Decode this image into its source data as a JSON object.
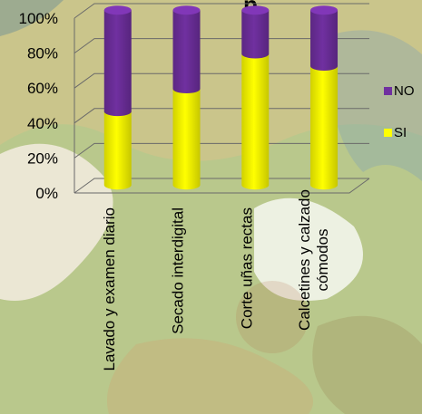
{
  "title_fragment": "p",
  "chart_data": {
    "type": "bar",
    "stacked": true,
    "three_d": true,
    "categories": [
      [
        "Lavado y examen diario"
      ],
      [
        "Secado interdigital"
      ],
      [
        "Corte uñas rectas"
      ],
      [
        "Calcetines y calzado",
        "cómodos"
      ]
    ],
    "series": [
      {
        "name": "SI",
        "color": "#ffff00",
        "values": [
          42,
          55,
          75,
          68
        ]
      },
      {
        "name": "NO",
        "color": "#7030a0",
        "values": [
          58,
          45,
          25,
          32
        ]
      }
    ],
    "y_ticks": [
      "0%",
      "20%",
      "40%",
      "60%",
      "80%",
      "100%"
    ],
    "ylim": [
      0,
      100
    ],
    "legend_position": "right",
    "legend_order": [
      "NO",
      "SI"
    ]
  }
}
